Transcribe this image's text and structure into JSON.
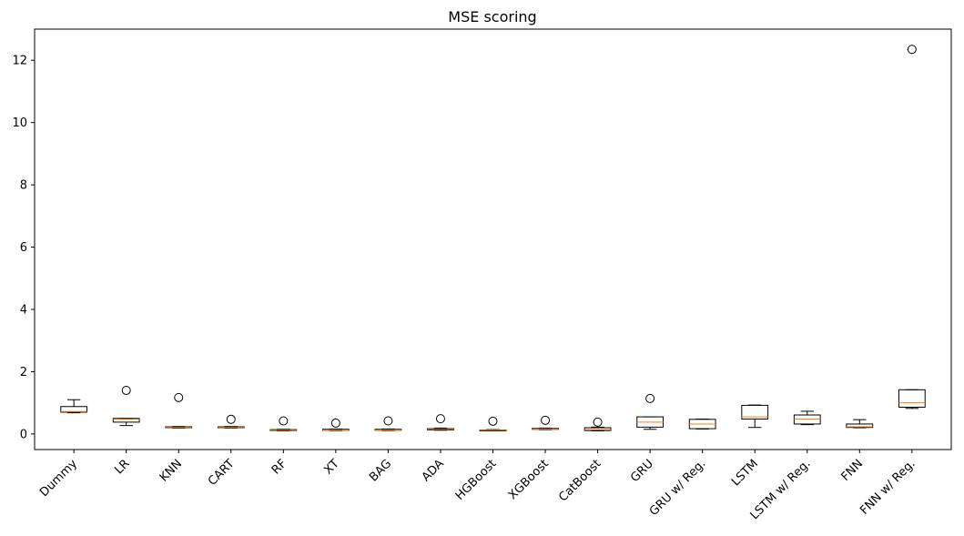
{
  "chart_data": {
    "type": "box",
    "title": "MSE scoring",
    "xlabel": "",
    "ylabel": "",
    "ylim": [
      -0.5,
      13.0
    ],
    "yticks": [
      0,
      2,
      4,
      6,
      8,
      10,
      12
    ],
    "grid": false,
    "colors": {
      "box": "#000000",
      "median": "#ff7f0e",
      "flier": "#000000"
    },
    "categories": [
      "Dummy",
      "LR",
      "KNN",
      "CART",
      "RF",
      "XT",
      "BAG",
      "ADA",
      "HGBoost",
      "XGBoost",
      "CatBoost",
      "GRU",
      "GRU w/ Reg.",
      "LSTM",
      "LSTM w/ Reg.",
      "FNN",
      "FNN w/ Reg."
    ],
    "boxes": [
      {
        "whislo": 0.68,
        "q1": 0.7,
        "med": 0.72,
        "q3": 0.88,
        "whishi": 1.1,
        "fliers": []
      },
      {
        "whislo": 0.27,
        "q1": 0.38,
        "med": 0.47,
        "q3": 0.5,
        "whishi": 0.5,
        "fliers": [
          1.4
        ]
      },
      {
        "whislo": 0.19,
        "q1": 0.2,
        "med": 0.21,
        "q3": 0.23,
        "whishi": 0.24,
        "fliers": [
          1.17
        ]
      },
      {
        "whislo": 0.19,
        "q1": 0.2,
        "med": 0.21,
        "q3": 0.23,
        "whishi": 0.24,
        "fliers": [
          0.47
        ]
      },
      {
        "whislo": 0.1,
        "q1": 0.11,
        "med": 0.12,
        "q3": 0.14,
        "whishi": 0.15,
        "fliers": [
          0.42
        ]
      },
      {
        "whislo": 0.11,
        "q1": 0.12,
        "med": 0.13,
        "q3": 0.15,
        "whishi": 0.16,
        "fliers": [
          0.35
        ]
      },
      {
        "whislo": 0.11,
        "q1": 0.12,
        "med": 0.13,
        "q3": 0.15,
        "whishi": 0.16,
        "fliers": [
          0.42
        ]
      },
      {
        "whislo": 0.12,
        "q1": 0.13,
        "med": 0.15,
        "q3": 0.17,
        "whishi": 0.19,
        "fliers": [
          0.49
        ]
      },
      {
        "whislo": 0.1,
        "q1": 0.11,
        "med": 0.12,
        "q3": 0.13,
        "whishi": 0.14,
        "fliers": [
          0.41
        ]
      },
      {
        "whislo": 0.14,
        "q1": 0.15,
        "med": 0.16,
        "q3": 0.18,
        "whishi": 0.19,
        "fliers": [
          0.44
        ]
      },
      {
        "whislo": 0.1,
        "q1": 0.11,
        "med": 0.14,
        "q3": 0.2,
        "whishi": 0.22,
        "fliers": [
          0.38
        ]
      },
      {
        "whislo": 0.15,
        "q1": 0.22,
        "med": 0.38,
        "q3": 0.55,
        "whishi": 0.55,
        "fliers": [
          1.14
        ]
      },
      {
        "whislo": 0.16,
        "q1": 0.17,
        "med": 0.32,
        "q3": 0.47,
        "whishi": 0.48,
        "fliers": []
      },
      {
        "whislo": 0.21,
        "q1": 0.48,
        "med": 0.55,
        "q3": 0.92,
        "whishi": 0.93,
        "fliers": []
      },
      {
        "whislo": 0.3,
        "q1": 0.32,
        "med": 0.48,
        "q3": 0.61,
        "whishi": 0.73,
        "fliers": []
      },
      {
        "whislo": 0.2,
        "q1": 0.21,
        "med": 0.23,
        "q3": 0.32,
        "whishi": 0.46,
        "fliers": []
      },
      {
        "whislo": 0.82,
        "q1": 0.86,
        "med": 1.0,
        "q3": 1.42,
        "whishi": 1.42,
        "fliers": [
          12.35
        ]
      }
    ]
  }
}
